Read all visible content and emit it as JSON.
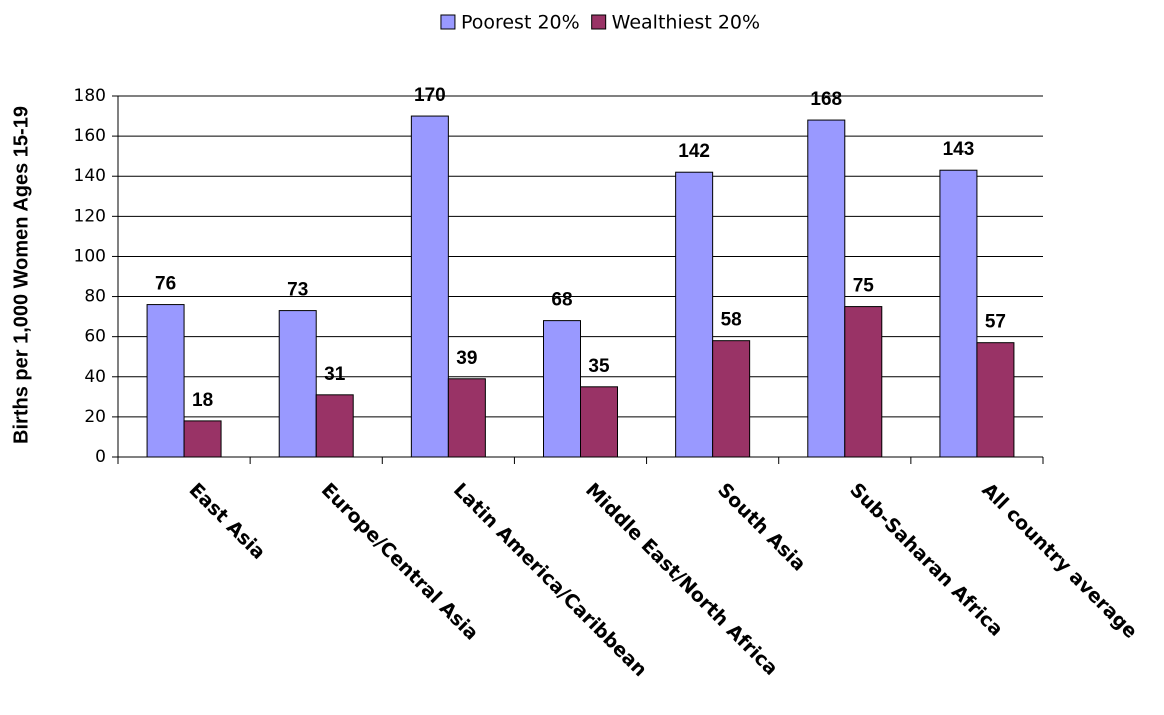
{
  "chart_data": {
    "type": "bar",
    "y_label": "Births per 1,000 Women Ages 15-19",
    "categories": [
      "East Asia",
      "Europe/Central Asia",
      "Latin America/Caribbean",
      "Middle East/North Africa",
      "South Asia",
      "Sub-Saharan Africa",
      "All country average"
    ],
    "series": [
      {
        "name": "Poorest 20%",
        "color": "#9999ff",
        "values": [
          76,
          73,
          170,
          68,
          142,
          168,
          143
        ]
      },
      {
        "name": "Wealthiest 20%",
        "color": "#993366",
        "values": [
          18,
          31,
          39,
          35,
          58,
          75,
          57
        ]
      }
    ],
    "ylim": [
      0,
      180
    ],
    "yticks": [
      0,
      20,
      40,
      60,
      80,
      100,
      120,
      140,
      160,
      180
    ],
    "grid": true,
    "legend": "top"
  }
}
